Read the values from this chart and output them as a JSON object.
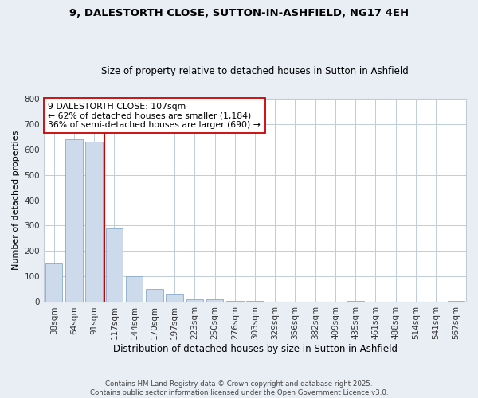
{
  "title": "9, DALESTORTH CLOSE, SUTTON-IN-ASHFIELD, NG17 4EH",
  "subtitle": "Size of property relative to detached houses in Sutton in Ashfield",
  "xlabel": "Distribution of detached houses by size in Sutton in Ashfield",
  "ylabel": "Number of detached properties",
  "categories": [
    "38sqm",
    "64sqm",
    "91sqm",
    "117sqm",
    "144sqm",
    "170sqm",
    "197sqm",
    "223sqm",
    "250sqm",
    "276sqm",
    "303sqm",
    "329sqm",
    "356sqm",
    "382sqm",
    "409sqm",
    "435sqm",
    "461sqm",
    "488sqm",
    "514sqm",
    "541sqm",
    "567sqm"
  ],
  "values": [
    150,
    638,
    630,
    290,
    103,
    50,
    33,
    12,
    12,
    6,
    5,
    0,
    0,
    0,
    0,
    3,
    0,
    0,
    0,
    0,
    3
  ],
  "bar_color": "#ccdaeb",
  "bar_edge_color": "#88aacc",
  "vline_x": 2.5,
  "vline_color": "#cc0000",
  "annotation_text": "9 DALESTORTH CLOSE: 107sqm\n← 62% of detached houses are smaller (1,184)\n36% of semi-detached houses are larger (690) →",
  "annotation_box_color": "#ffffff",
  "annotation_box_edge": "#cc0000",
  "ylim": [
    0,
    800
  ],
  "yticks": [
    0,
    100,
    200,
    300,
    400,
    500,
    600,
    700,
    800
  ],
  "footer": "Contains HM Land Registry data © Crown copyright and database right 2025.\nContains public sector information licensed under the Open Government Licence v3.0.",
  "bg_color": "#e8eef4",
  "plot_bg_color": "#ffffff",
  "grid_color": "#c0ccd8"
}
